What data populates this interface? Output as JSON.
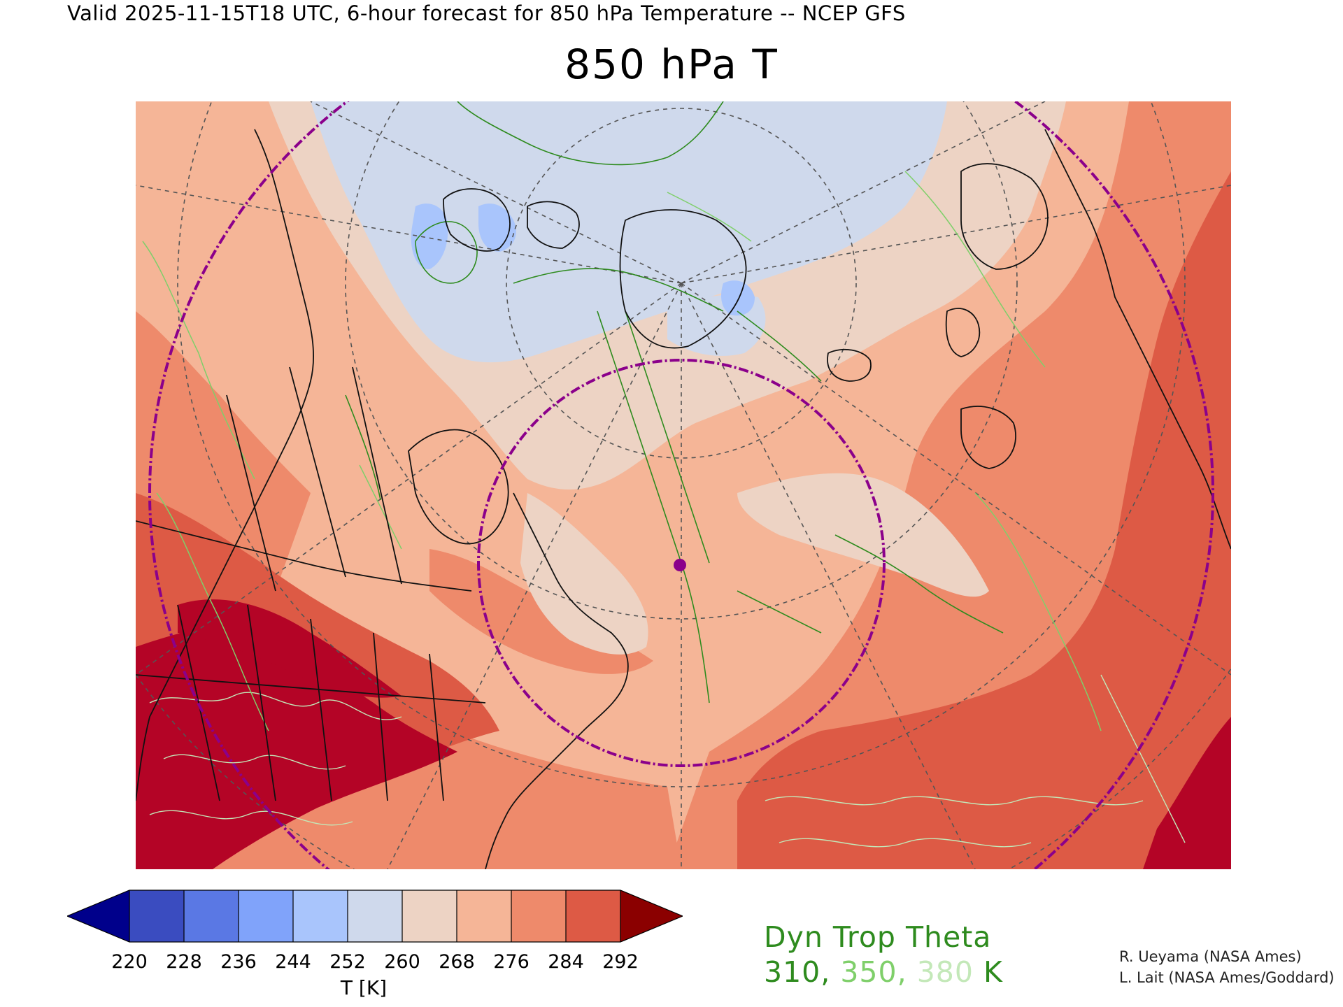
{
  "header": {
    "valid_line": "Valid 2025-11-15T18 UTC, 6-hour forecast for 850 hPa Temperature -- NCEP GFS",
    "title": "850 hPa T"
  },
  "colorbar": {
    "ticks": [
      "220",
      "228",
      "236",
      "244",
      "252",
      "260",
      "268",
      "276",
      "284",
      "292"
    ],
    "unit_label": "T [K]",
    "colors": [
      "#3a4cc0",
      "#5a78e4",
      "#80a3fa",
      "#a9c5fc",
      "#cfd9ec",
      "#edd3c4",
      "#f5b597",
      "#ee8a6b",
      "#dd5a45",
      "#b40426"
    ],
    "under_color": "#00008b",
    "over_color": "#8b0000"
  },
  "legend": {
    "title": "Dyn Trop Theta",
    "values": [
      {
        "text": "310",
        "color": "#2e8b1e"
      },
      {
        "text": "350",
        "color": "#7fcf6a"
      },
      {
        "text": "380",
        "color": "#c3e8b8"
      }
    ],
    "separator": ", ",
    "unit": " K"
  },
  "credits": [
    "R. Ueyama (NASA Ames)",
    "L. Lait (NASA Ames/Goddard)"
  ],
  "map": {
    "field_colors": {
      "cold_core": "#a9c5fc",
      "cold": "#cfd9ec",
      "cool": "#edd3c4",
      "mild": "#f5b597",
      "warm": "#ee8a6b",
      "hot": "#dd5a45",
      "hottest": "#b40426"
    },
    "ring_color": "#8b008b",
    "marker_color": "#8b008b",
    "coastline_color": "#111111",
    "graticule_color": "#555555",
    "contour_colors": [
      "#2e8b1e",
      "#7fcf6a",
      "#c3e8b8"
    ]
  }
}
